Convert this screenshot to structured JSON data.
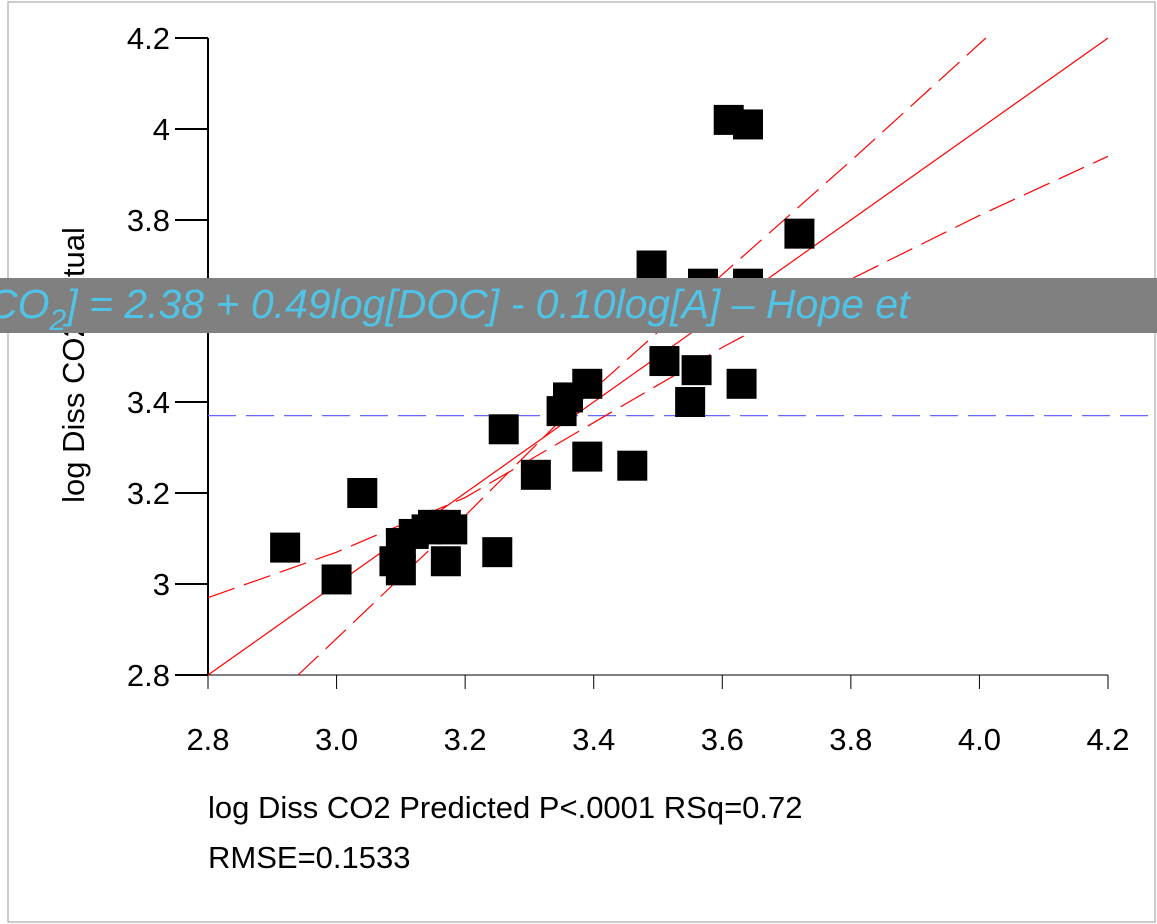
{
  "chart_data": {
    "type": "scatter",
    "ylabel": "log Diss CO2 Actual",
    "xlabel": "log Diss CO2 Predicted P<.0001 RSq=0.72",
    "xlabel_line2": "RMSE=0.1533",
    "x": [
      2.92,
      3.0,
      3.04,
      3.09,
      3.1,
      3.1,
      3.12,
      3.14,
      3.15,
      3.17,
      3.18,
      3.17,
      3.25,
      3.26,
      3.31,
      3.35,
      3.36,
      3.39,
      3.39,
      3.46,
      3.49,
      3.51,
      3.56,
      3.55,
      3.57,
      3.61,
      3.64,
      3.63,
      3.64,
      3.72
    ],
    "y": [
      3.08,
      3.01,
      3.2,
      3.05,
      3.03,
      3.09,
      3.11,
      3.12,
      3.13,
      3.13,
      3.12,
      3.05,
      3.07,
      3.34,
      3.24,
      3.38,
      3.41,
      3.44,
      3.28,
      3.26,
      3.7,
      3.49,
      3.47,
      3.4,
      3.66,
      4.02,
      4.01,
      3.44,
      3.66,
      3.77
    ],
    "color": "#000000",
    "fit_line": {
      "x": [
        2.8,
        4.2
      ],
      "y": [
        2.8,
        4.2
      ],
      "color": "#ff0000"
    },
    "confidence_curves": [
      {
        "x": [
          2.8,
          3.0,
          3.2,
          3.37,
          3.6,
          3.8,
          4.0,
          4.2
        ],
        "y": [
          2.97,
          3.07,
          3.19,
          3.33,
          3.52,
          3.67,
          3.81,
          3.94
        ],
        "color": "#ff0000"
      },
      {
        "x": [
          2.94,
          3.0,
          3.2,
          3.37,
          3.6,
          3.8,
          4.01
        ],
        "y": [
          2.8,
          2.88,
          3.15,
          3.39,
          3.68,
          3.93,
          4.2
        ],
        "color": "#ff0000"
      }
    ],
    "mean_line": {
      "y": 3.37,
      "color": "#6666ff"
    },
    "xlim": [
      2.8,
      4.2
    ],
    "ylim": [
      2.8,
      4.2
    ],
    "xticks": [
      2.8,
      {
        "value": 3.0,
        "label": "3.0"
      },
      3.2,
      3.4,
      3.6,
      3.8,
      {
        "value": 4.0,
        "label": "4.0"
      },
      4.2
    ],
    "yticks": [
      2.8,
      3,
      3.2,
      3.4,
      3.6,
      3.8,
      4,
      4.2
    ]
  },
  "banner": {
    "text_before": "CO",
    "subscript": "2",
    "text_after": "] = 2.38 + 0.49log[DOC] - 0.10log[A] – Hope et"
  }
}
